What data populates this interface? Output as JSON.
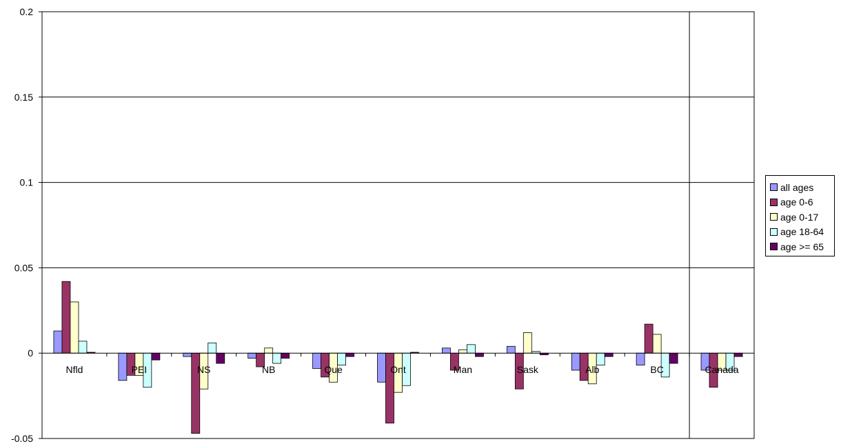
{
  "chart_data": {
    "type": "bar",
    "categories": [
      "Nfld",
      "PEI",
      "NS",
      "NB",
      "Que",
      "Ont",
      "Man",
      "Sask",
      "Alb",
      "BC",
      "Canada"
    ],
    "ylim": [
      -0.05,
      0.2
    ],
    "yticks": [
      "-0.05",
      "0",
      "0.05",
      "0.1",
      "0.15",
      "0.2"
    ],
    "ytick_values": [
      -0.05,
      0,
      0.05,
      0.1,
      0.15,
      0.2
    ],
    "grid": true,
    "legend_position": "right",
    "series": [
      {
        "name": "all ages",
        "color": "#9999ff",
        "values": [
          0.013,
          -0.016,
          -0.002,
          -0.003,
          -0.009,
          -0.017,
          0.003,
          0.004,
          -0.01,
          -0.007,
          -0.01
        ]
      },
      {
        "name": "age 0-6",
        "color": "#993366",
        "values": [
          0.042,
          -0.013,
          -0.047,
          -0.008,
          -0.014,
          -0.041,
          -0.01,
          -0.021,
          -0.016,
          0.017,
          -0.02
        ]
      },
      {
        "name": "age 0-17",
        "color": "#ffffcc",
        "values": [
          0.03,
          -0.013,
          -0.021,
          0.003,
          -0.017,
          -0.023,
          0.002,
          0.012,
          -0.018,
          0.011,
          -0.01
        ]
      },
      {
        "name": "age 18-64",
        "color": "#ccffff",
        "values": [
          0.007,
          -0.02,
          0.006,
          -0.006,
          -0.007,
          -0.019,
          0.005,
          0.001,
          -0.007,
          -0.014,
          -0.01
        ]
      },
      {
        "name": "age >= 65",
        "color": "#660066",
        "values": [
          0.0005,
          -0.004,
          -0.006,
          -0.003,
          -0.002,
          0.0005,
          -0.002,
          -0.001,
          -0.002,
          -0.006,
          -0.002
        ]
      }
    ]
  }
}
